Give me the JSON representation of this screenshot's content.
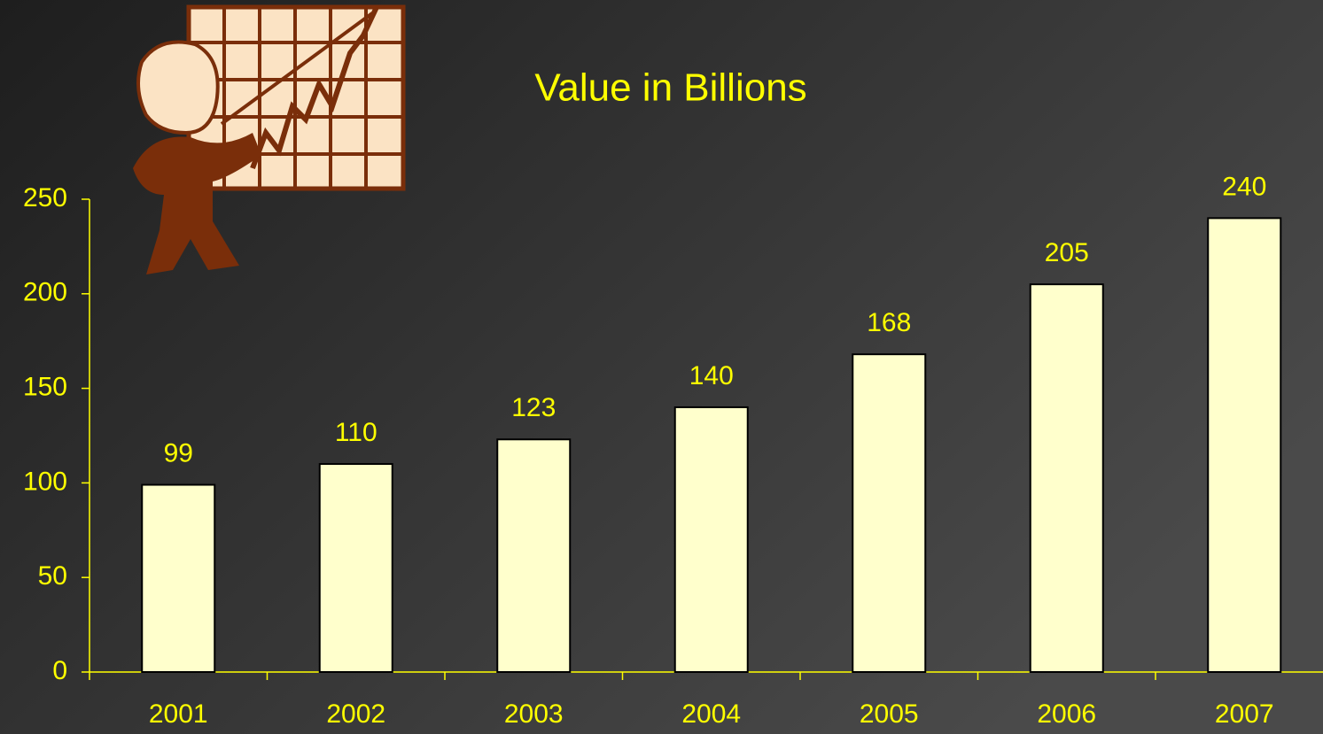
{
  "chart_data": {
    "type": "bar",
    "title": "Value in Billions",
    "categories": [
      "2001",
      "2002",
      "2003",
      "2004",
      "2005",
      "2006",
      "2007"
    ],
    "values": [
      99,
      110,
      123,
      140,
      168,
      205,
      240
    ],
    "color": "#ffffcc",
    "ylim": [
      0,
      250
    ],
    "yticks": [
      0,
      50,
      100,
      150,
      200,
      250
    ]
  }
}
